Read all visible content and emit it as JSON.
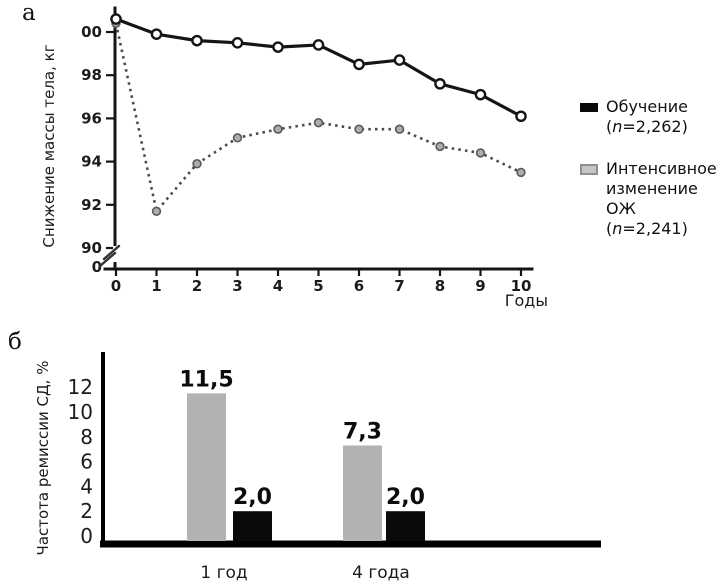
{
  "chart_data": [
    {
      "type": "line",
      "panel": "а",
      "title": "",
      "xlabel": "Годы",
      "ylabel": "Снижение массы тела, кг",
      "x": [
        0,
        1,
        2,
        3,
        4,
        5,
        6,
        7,
        8,
        9,
        10
      ],
      "x_tick_labels": [
        "0",
        "1",
        "2",
        "3",
        "4",
        "5",
        "6",
        "7",
        "8",
        "9",
        "10"
      ],
      "y_ticks": {
        "values": [
          100,
          98,
          96,
          94,
          92,
          90
        ],
        "labels": [
          "00",
          "98",
          "96",
          "94",
          "92",
          "90"
        ]
      },
      "y_axis_zero_label": "0",
      "axis_break": true,
      "ylim_display": [
        90,
        101
      ],
      "series": [
        {
          "name": "Обучение (n=2,262)",
          "style": "solid black line, open circle markers",
          "color": "#151515",
          "values": [
            100.6,
            99.9,
            99.6,
            99.5,
            99.3,
            99.4,
            98.5,
            98.7,
            97.6,
            97.1,
            96.1
          ]
        },
        {
          "name": "Интенсивное изменение ОЖ (n=2,241)",
          "style": "dotted gray line, filled gray circle markers",
          "color": "#4a4a4a",
          "values": [
            100.4,
            91.7,
            93.9,
            95.1,
            95.5,
            95.8,
            95.5,
            95.5,
            94.7,
            94.4,
            93.5
          ]
        }
      ],
      "legend_position": "right"
    },
    {
      "type": "bar",
      "panel": "б",
      "title": "",
      "xlabel": "",
      "ylabel": "Частота ремиссии СД, %",
      "categories": [
        "1 год",
        "4 года"
      ],
      "y_ticks": [
        0,
        2,
        4,
        6,
        8,
        10,
        12
      ],
      "ylim": [
        0,
        13
      ],
      "grid": false,
      "series": [
        {
          "name": "Интенсивное изменение ОЖ",
          "color": "#b2b2b2",
          "values": [
            11.5,
            7.3
          ],
          "value_labels": [
            "11,5",
            "7,3"
          ]
        },
        {
          "name": "Обучение",
          "color": "#0a0a0a",
          "values": [
            2.0,
            2.0
          ],
          "value_labels": [
            "2,0",
            "2,0"
          ]
        }
      ]
    }
  ],
  "legend": {
    "items": [
      {
        "swatch": "black",
        "line1": "Обучение",
        "n_open": "(",
        "n_char": "n",
        "n_rest": "=2,262)"
      },
      {
        "swatch": "gray",
        "line1": "Интенсивное",
        "line2": "изменение ОЖ",
        "n_open": "(",
        "n_char": "n",
        "n_rest": "=2,241)"
      }
    ]
  }
}
